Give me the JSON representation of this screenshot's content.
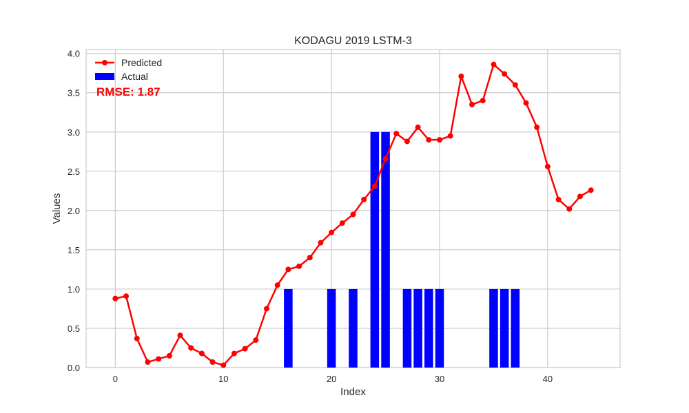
{
  "chart_data": {
    "type": "bar+line",
    "title": "KODAGU 2019 LSTM-3",
    "xlabel": "Index",
    "ylabel": "Values",
    "xlim": [
      -2.7,
      46.7
    ],
    "ylim": [
      0,
      4.05
    ],
    "xticks": [
      0,
      10,
      20,
      30,
      40
    ],
    "yticks": [
      0.0,
      0.5,
      1.0,
      1.5,
      2.0,
      2.5,
      3.0,
      3.5,
      4.0
    ],
    "ytick_labels": [
      "0.0",
      "0.5",
      "1.0",
      "1.5",
      "2.0",
      "2.5",
      "3.0",
      "3.5",
      "4.0"
    ],
    "xtick_labels": [
      "0",
      "10",
      "20",
      "30",
      "40"
    ],
    "grid": true,
    "legend": {
      "position": "top-left",
      "entries": [
        "Predicted",
        "Actual"
      ]
    },
    "annotation": {
      "text": "RMSE: 1.87",
      "color": "#ff0000",
      "position": "top-left"
    },
    "predicted": {
      "name": "Predicted",
      "color": "#ff0000",
      "x": [
        0,
        1,
        2,
        3,
        4,
        5,
        6,
        7,
        8,
        9,
        10,
        11,
        12,
        13,
        14,
        15,
        16,
        17,
        18,
        19,
        20,
        21,
        22,
        23,
        24,
        25,
        26,
        27,
        28,
        29,
        30,
        31,
        32,
        33,
        34,
        35,
        36,
        37,
        38,
        39,
        40,
        41,
        42,
        43,
        44
      ],
      "values": [
        0.88,
        0.91,
        0.37,
        0.07,
        0.11,
        0.15,
        0.41,
        0.25,
        0.18,
        0.07,
        0.03,
        0.18,
        0.24,
        0.35,
        0.75,
        1.05,
        1.25,
        1.29,
        1.4,
        1.59,
        1.72,
        1.84,
        1.95,
        2.14,
        2.31,
        2.66,
        2.98,
        2.88,
        3.06,
        2.9,
        2.9,
        2.95,
        3.71,
        3.35,
        3.4,
        3.86,
        3.74,
        3.6,
        3.37,
        3.06,
        2.56,
        2.14,
        2.02,
        2.18,
        2.26
      ]
    },
    "actual": {
      "name": "Actual",
      "color": "#0000ff",
      "x": [
        16,
        20,
        22,
        24,
        25,
        27,
        28,
        29,
        30,
        35,
        36,
        37
      ],
      "values": [
        1,
        1,
        1,
        3,
        3,
        1,
        1,
        1,
        1,
        1,
        1,
        1
      ]
    }
  }
}
